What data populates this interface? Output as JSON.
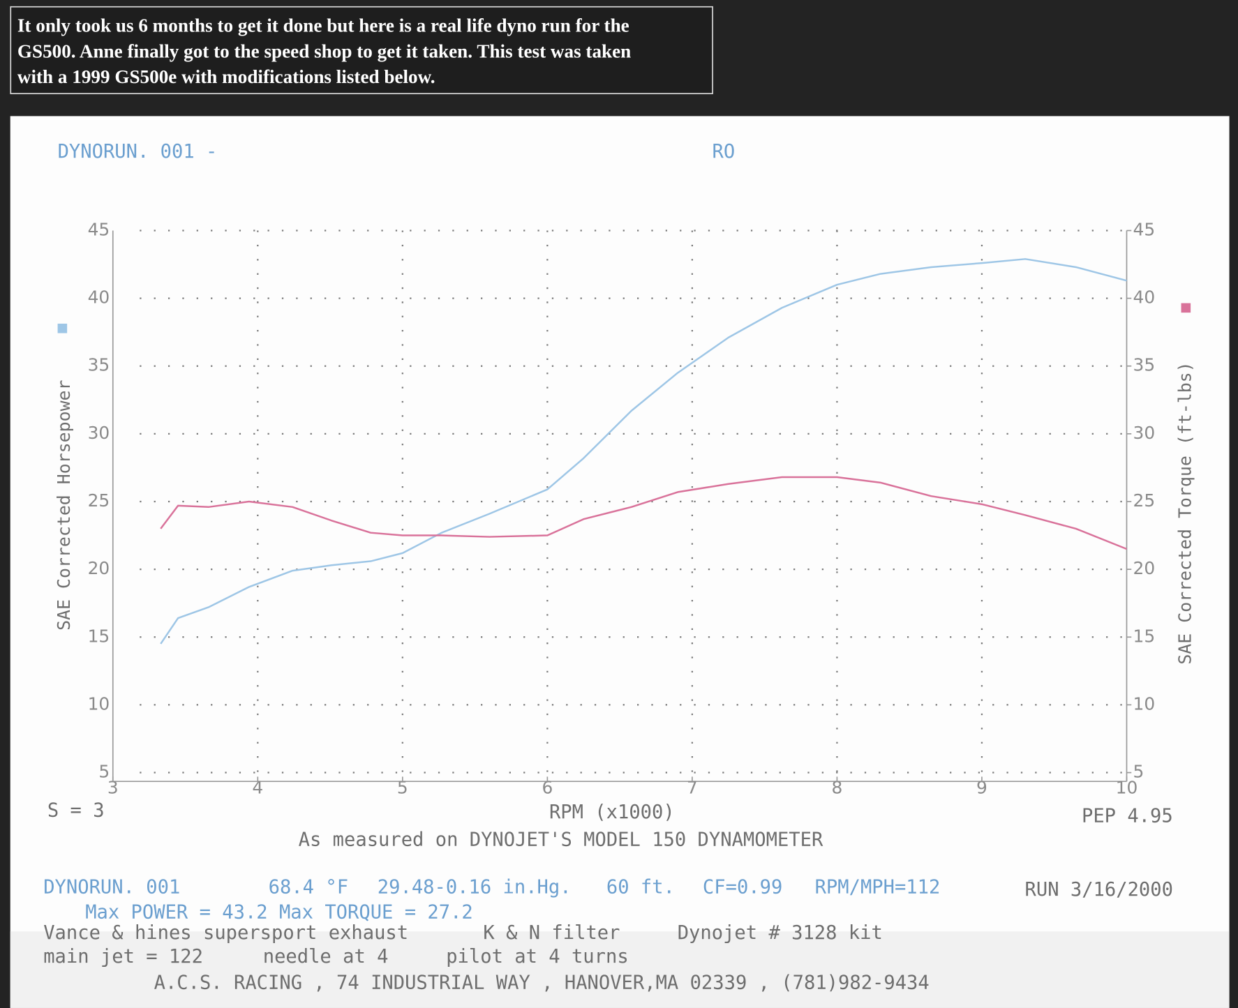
{
  "intro": {
    "lines": [
      "It only took us 6 months to get it done but here is a real life dyno run for the",
      "GS500. Anne finally got to the speed shop to get it taken.  This test was taken",
      "with a 1999 GS500e with modifications listed below."
    ]
  },
  "chart_data": {
    "type": "line",
    "title": "DYNORUN. 001  -",
    "subtitle": "RO",
    "xlabel": "RPM (x1000)",
    "smoothing": "S = 3",
    "pep": "PEP 4.95",
    "caption": "As measured on DYNOJET'S MODEL 150 DYNAMOMETER",
    "x": [
      3.33,
      3.45,
      3.66,
      3.94,
      4.24,
      4.51,
      4.78,
      5.0,
      5.27,
      5.6,
      6.0,
      6.25,
      6.58,
      6.9,
      7.25,
      7.62,
      8.0,
      8.3,
      8.65,
      9.0,
      9.3,
      9.65,
      10.0
    ],
    "series": [
      {
        "name": "SAE Corrected Horsepower",
        "color": "#9ec6e6",
        "values": [
          14.5,
          16.4,
          17.2,
          18.7,
          19.9,
          20.3,
          20.6,
          21.2,
          22.7,
          24.1,
          25.9,
          28.2,
          31.7,
          34.5,
          37.1,
          39.3,
          41.0,
          41.8,
          42.3,
          42.6,
          42.9,
          42.3,
          41.3
        ]
      },
      {
        "name": "SAE Corrected Torque (ft-lbs)",
        "color": "#d9729a",
        "axis": "y2",
        "values": [
          23.0,
          24.7,
          24.6,
          25.0,
          24.6,
          23.6,
          22.7,
          22.5,
          22.5,
          22.4,
          22.5,
          23.7,
          24.6,
          25.7,
          26.3,
          26.8,
          26.8,
          26.4,
          25.4,
          24.8,
          24.0,
          23.0,
          21.5
        ]
      }
    ],
    "xlim": [
      3,
      10
    ],
    "xticks": [
      3,
      4,
      5,
      6,
      7,
      8,
      9,
      10
    ],
    "ylim": [
      4,
      45
    ],
    "yticks": [
      5,
      10,
      15,
      20,
      25,
      30,
      35,
      40,
      45
    ],
    "y2lim": [
      4,
      45
    ],
    "y2ticks": [
      5,
      10,
      15,
      20,
      25,
      30,
      35,
      40,
      45
    ],
    "grid": true,
    "run_info": [
      "DYNORUN. 001",
      "68.4 °F",
      "29.48-0.16 in.Hg.",
      "60 ft.",
      "CF=0.99",
      "RPM/MPH=112"
    ],
    "run_date": "RUN 3/16/2000",
    "max_line": "Max POWER = 43.2  Max TORQUE = 27.2",
    "mods": [
      [
        "Vance & hines supersport exhaust",
        "K & N filter",
        "Dynojet # 3128 kit"
      ],
      [
        "main jet = 122",
        "needle at 4",
        "pilot at 4 turns"
      ]
    ],
    "shop": "A.C.S. RACING , 74 INDUSTRIAL WAY , HANOVER,MA 02339 , (781)982-9434"
  }
}
